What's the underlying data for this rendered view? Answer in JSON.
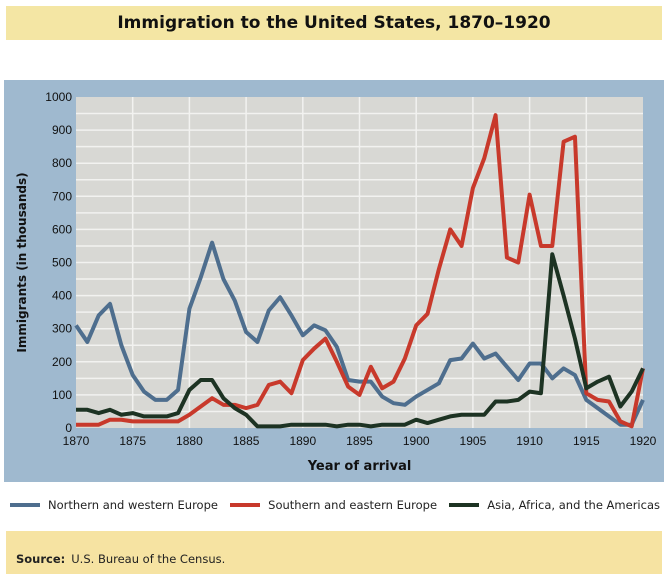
{
  "source_label": "Source:",
  "source_text": "U.S. Bureau of the Census.",
  "chart_data": {
    "type": "line",
    "title": "Immigration to the United States, 1870–1920",
    "xlabel": "Year of arrival",
    "ylabel": "Immigrants (in thousands)",
    "xlim": [
      1870,
      1920
    ],
    "ylim": [
      0,
      1000
    ],
    "xticks": [
      1870,
      1875,
      1880,
      1885,
      1890,
      1895,
      1900,
      1905,
      1910,
      1915,
      1920
    ],
    "yticks": [
      0,
      100,
      200,
      300,
      400,
      500,
      600,
      700,
      800,
      900,
      1000
    ],
    "grid": true,
    "legend": "bottom",
    "x": [
      1870,
      1871,
      1872,
      1873,
      1874,
      1875,
      1876,
      1877,
      1878,
      1879,
      1880,
      1881,
      1882,
      1883,
      1884,
      1885,
      1886,
      1887,
      1888,
      1889,
      1890,
      1891,
      1892,
      1893,
      1894,
      1895,
      1896,
      1897,
      1898,
      1899,
      1900,
      1901,
      1902,
      1903,
      1904,
      1905,
      1906,
      1907,
      1908,
      1909,
      1910,
      1911,
      1912,
      1913,
      1914,
      1915,
      1916,
      1917,
      1918,
      1919,
      1920
    ],
    "series": [
      {
        "name": "Northern and western Europe",
        "color": "#4e6e8e",
        "values": [
          310,
          260,
          340,
          375,
          250,
          160,
          110,
          85,
          85,
          115,
          360,
          455,
          560,
          450,
          385,
          290,
          260,
          355,
          395,
          340,
          280,
          310,
          295,
          245,
          145,
          140,
          140,
          95,
          75,
          70,
          95,
          115,
          135,
          205,
          210,
          255,
          210,
          225,
          185,
          145,
          195,
          195,
          150,
          180,
          160,
          85,
          60,
          35,
          10,
          10,
          85
        ]
      },
      {
        "name": "Southern and eastern Europe",
        "color": "#c8392b",
        "values": [
          10,
          10,
          10,
          25,
          25,
          20,
          20,
          20,
          20,
          20,
          40,
          65,
          90,
          70,
          70,
          60,
          70,
          130,
          140,
          105,
          205,
          240,
          270,
          200,
          125,
          100,
          185,
          120,
          140,
          210,
          310,
          345,
          480,
          600,
          550,
          725,
          815,
          945,
          515,
          500,
          705,
          550,
          550,
          865,
          880,
          105,
          85,
          80,
          20,
          5,
          180
        ]
      },
      {
        "name": "Asia, Africa, and the Americas",
        "color": "#1d3323",
        "values": [
          55,
          55,
          45,
          55,
          40,
          45,
          35,
          35,
          35,
          45,
          115,
          145,
          145,
          90,
          60,
          40,
          5,
          5,
          5,
          10,
          10,
          10,
          10,
          5,
          10,
          10,
          5,
          10,
          10,
          10,
          25,
          15,
          25,
          35,
          40,
          40,
          40,
          80,
          80,
          85,
          110,
          105,
          525,
          400,
          270,
          120,
          140,
          155,
          65,
          110,
          180
        ]
      }
    ]
  }
}
